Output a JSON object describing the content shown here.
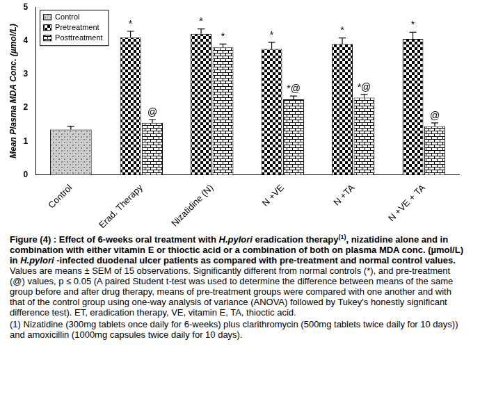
{
  "chart_data": {
    "type": "bar",
    "categories": [
      "Control",
      "Erad. Therapy",
      "Nizatidine (N)",
      "N +VE",
      "N +TA",
      "N +VE + TA"
    ],
    "ylabel": "Mean Plasma MDA Conc. (µmol/L)",
    "ylim": [
      0,
      5
    ],
    "yticks": [
      0,
      1,
      2,
      3,
      4,
      5
    ],
    "grid": false,
    "legend": "upper left",
    "series": [
      {
        "name": "Control",
        "color": "#808080",
        "values": [
          1.35,
          null,
          null,
          null,
          null,
          null
        ],
        "errors": [
          0.1,
          null,
          null,
          null,
          null,
          null
        ]
      },
      {
        "name": "Pretreatment",
        "color": "#000000",
        "values": [
          null,
          4.1,
          4.2,
          3.75,
          3.9,
          4.05
        ],
        "errors": [
          null,
          0.18,
          0.15,
          0.2,
          0.18,
          0.2
        ],
        "annotations": [
          null,
          "*",
          "*",
          "*",
          "*",
          "*"
        ]
      },
      {
        "name": "Posttreatment",
        "color": "#000000",
        "values": [
          null,
          1.55,
          3.8,
          2.25,
          2.3,
          1.45
        ],
        "errors": [
          null,
          0.1,
          0.1,
          0.1,
          0.1,
          0.1
        ],
        "annotations": [
          null,
          "@",
          "*",
          "*@",
          "*@",
          "@"
        ]
      }
    ],
    "caption": [
      [
        {
          "text": "Figure (4) : Effect of 6-weeks oral treatment with ",
          "style": "bold"
        },
        {
          "text": "H.pylori",
          "style": "bold italic"
        },
        {
          "text": " eradication therapy",
          "style": "bold"
        },
        {
          "text": "(1)",
          "style": "bold sup"
        },
        {
          "text": ", nizatidine alone and in combination with either vitamin E or thioctic acid or a combination of both on plasma MDA conc. (µmol/L) in ",
          "style": "bold"
        },
        {
          "text": "H.pylori",
          "style": "bold italic"
        },
        {
          "text": " -infected duodenal ulcer patients as compared with pre-treatment and normal control values.",
          "style": "bold"
        },
        {
          "text": " Values are means ± SEM of 15 observations. Significantly different from normal controls (*), and pre-treatment (@) values, p ≤ 0.05 (A paired Student t-test was used to determine the difference between means of the same group before and after drug therapy, means of pre-treatment groups were compared with one another and with that of the control group using one-way analysis of variance (ANOVA) followed by Tukey's honestly significant difference test). ET, eradication therapy, VE, vitamin E, TA, thioctic acid.",
          "style": "normal"
        }
      ],
      [
        {
          "text": "(1) Nizatidine (300mg tablets once daily for 6-weeks) plus clarithromycin (500mg tablets twice daily for 10 days)) and amoxicillin (1000mg capsules twice daily for 10 days).",
          "style": "normal"
        }
      ]
    ]
  }
}
